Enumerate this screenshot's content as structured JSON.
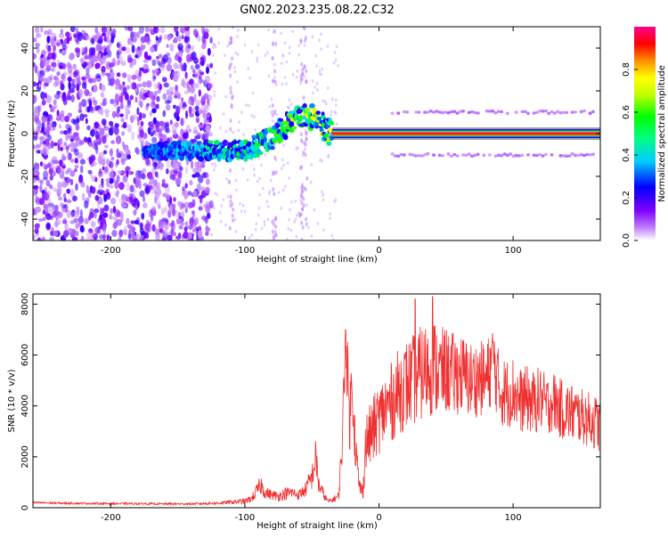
{
  "title": "GN02.2023.235.08.22.C32",
  "chart_data": [
    {
      "type": "heatmap",
      "title": "GN02.2023.235.08.22.C32",
      "xlabel": "Height of straight line (km)",
      "ylabel": "Frequency (Hz)",
      "xlim": [
        -258,
        165
      ],
      "ylim": [
        -50,
        50
      ],
      "x_ticks": [
        -200,
        -100,
        0,
        100
      ],
      "y_ticks": [
        -40,
        -20,
        0,
        20,
        40
      ],
      "grid": false,
      "colorbar": {
        "label": "Normalized spectral amplitude",
        "range": [
          0,
          1
        ],
        "ticks": [
          0.0,
          0.2,
          0.4,
          0.6,
          0.8
        ],
        "colormap": [
          "#ffffff",
          "#8000ff",
          "#0000ff",
          "#00e0ff",
          "#00ff00",
          "#ffff00",
          "#ff8000",
          "#ff0000",
          "#ff00a0"
        ]
      },
      "features": {
        "noise_region_x": [
          -258,
          -125
        ],
        "ridge": [
          {
            "x": -175,
            "y": -8
          },
          {
            "x": -130,
            "y": -8
          },
          {
            "x": -100,
            "y": -8
          },
          {
            "x": -80,
            "y": -2
          },
          {
            "x": -65,
            "y": 6
          },
          {
            "x": -55,
            "y": 10
          },
          {
            "x": -45,
            "y": 5
          },
          {
            "x": -35,
            "y": 0
          },
          {
            "x": -20,
            "y": -2
          },
          {
            "x": 0,
            "y": 0
          },
          {
            "x": 165,
            "y": 0
          }
        ],
        "carrier_frequency_hz": 0,
        "carrier_x_range": [
          -35,
          165
        ],
        "sidebands_hz": [
          10,
          -10
        ],
        "sideband_x_range": [
          10,
          160
        ]
      }
    },
    {
      "type": "line",
      "xlabel": "Height of straight line (km)",
      "ylabel": "SNR (10 * v/v)",
      "xlim": [
        -258,
        165
      ],
      "ylim": [
        0,
        8400
      ],
      "x_ticks": [
        -200,
        -100,
        0,
        100
      ],
      "y_ticks": [
        0,
        2000,
        4000,
        6000,
        8000
      ],
      "grid": false,
      "series": [
        {
          "color": "#f03030",
          "x": [
            -258,
            -240,
            -220,
            -200,
            -180,
            -160,
            -140,
            -120,
            -110,
            -100,
            -95,
            -88,
            -85,
            -80,
            -75,
            -70,
            -65,
            -60,
            -55,
            -50,
            -47,
            -45,
            -42,
            -40,
            -38,
            -35,
            -30,
            -27,
            -25,
            -22,
            -20,
            -18,
            -15,
            -12,
            -10,
            -5,
            0,
            5,
            10,
            15,
            20,
            25,
            30,
            35,
            40,
            45,
            50,
            55,
            60,
            65,
            70,
            75,
            80,
            85,
            90,
            95,
            100,
            105,
            110,
            115,
            120,
            125,
            130,
            135,
            140,
            145,
            150,
            155,
            160,
            165
          ],
          "y": [
            200,
            180,
            170,
            160,
            160,
            150,
            150,
            180,
            220,
            250,
            350,
            900,
            600,
            500,
            450,
            550,
            600,
            500,
            700,
            1200,
            2000,
            900,
            600,
            400,
            250,
            300,
            450,
            3000,
            7000,
            3500,
            5000,
            2800,
            900,
            600,
            2500,
            3000,
            3500,
            3900,
            4200,
            4600,
            4800,
            5000,
            5200,
            5400,
            5600,
            5300,
            5400,
            5200,
            5300,
            5100,
            5000,
            5100,
            5000,
            5800,
            4600,
            4500,
            4600,
            4200,
            4300,
            4100,
            4300,
            4000,
            4200,
            3900,
            3800,
            3700,
            3600,
            3500,
            3400,
            3200
          ],
          "noise": [
            40,
            40,
            40,
            40,
            40,
            40,
            40,
            60,
            80,
            120,
            150,
            400,
            250,
            200,
            200,
            250,
            250,
            200,
            300,
            500,
            800,
            400,
            250,
            150,
            80,
            100,
            200,
            1200,
            1400,
            1500,
            1200,
            1200,
            400,
            300,
            1200,
            1300,
            1400,
            1500,
            1600,
            1700,
            1800,
            1800,
            1900,
            1900,
            2000,
            1800,
            1700,
            1700,
            1600,
            1600,
            1500,
            1500,
            1500,
            1600,
            1400,
            1400,
            1400,
            1300,
            1300,
            1300,
            1300,
            1200,
            1200,
            1200,
            1200,
            1200,
            1100,
            1100,
            1100,
            1100
          ],
          "peaks": [
            {
              "x": 40,
              "y": 8300
            },
            {
              "x": 27,
              "y": 8200
            },
            {
              "x": 85,
              "y": 6500
            },
            {
              "x": -25,
              "y": 7000
            }
          ]
        }
      ]
    }
  ]
}
